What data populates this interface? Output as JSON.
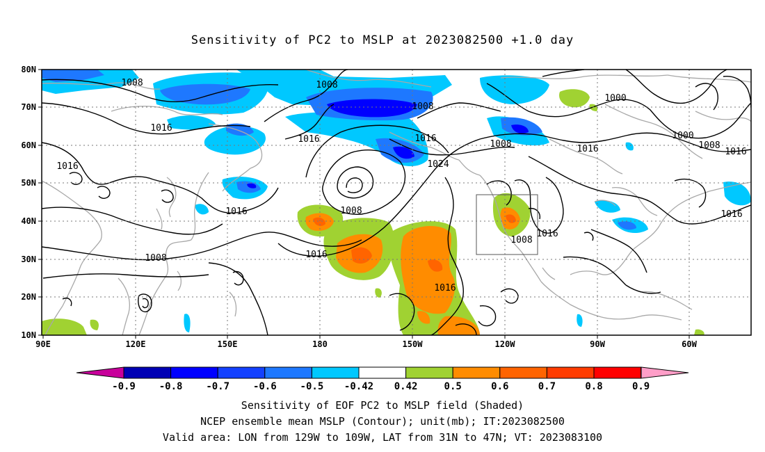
{
  "title": "Sensitivity of PC2 to MSLP at 2023082500 +1.0 day",
  "map": {
    "lat_labels": [
      "80N",
      "70N",
      "60N",
      "50N",
      "40N",
      "30N",
      "20N",
      "10N"
    ],
    "lon_labels": [
      "90E",
      "120E",
      "150E",
      "180",
      "150W",
      "120W",
      "90W",
      "60W"
    ],
    "contour_labels": [
      "1008",
      "1016",
      "1008",
      "1016",
      "1016",
      "1008",
      "1008",
      "1016",
      "1024",
      "1008",
      "1016",
      "1016",
      "1008",
      "1016",
      "1008",
      "1016",
      "1000",
      "1000",
      "1008",
      "1016",
      "1016",
      "1016"
    ],
    "valid_area_box": {
      "lon_from": "129W",
      "lon_to": "109W",
      "lat_from": "31N",
      "lat_to": "47N"
    }
  },
  "colorbar": {
    "labels": [
      "-0.9",
      "-0.8",
      "-0.7",
      "-0.6",
      "-0.5",
      "-0.42",
      "0.42",
      "0.5",
      "0.6",
      "0.7",
      "0.8",
      "0.9"
    ],
    "colors": [
      "#0000b4",
      "#0000ff",
      "#1441ff",
      "#1e78ff",
      "#00c8ff",
      "#ffffff",
      "#a0d232",
      "#ff8c00",
      "#ff6400",
      "#ff3c00",
      "#ff0000"
    ],
    "low_end_color": "#c8009b",
    "high_end_color": "#ff9ec8"
  },
  "footer": {
    "line1": "Sensitivity of EOF PC2 to MSLP field (Shaded)",
    "line2": "NCEP ensemble mean MSLP (Contour); unit(mb); IT:2023082500",
    "line3": "Valid area: LON from 129W to 109W, LAT from 31N to 47N; VT: 2023083100"
  }
}
